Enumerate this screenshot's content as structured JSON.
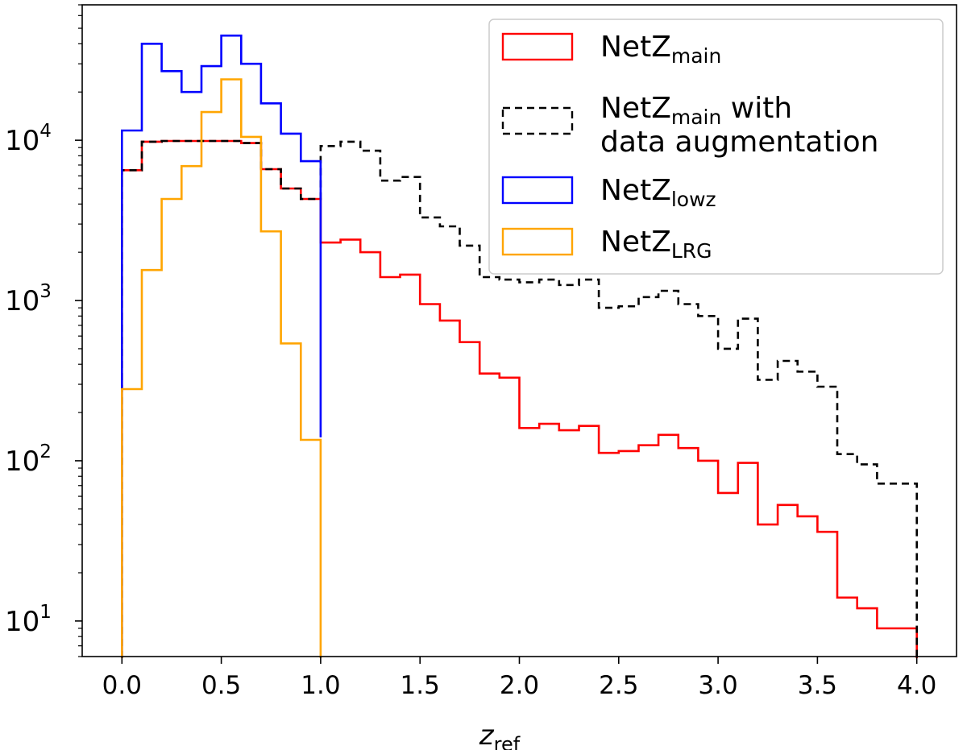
{
  "chart_data": {
    "type": "histogram-step",
    "title": "",
    "xlabel": {
      "main": "z",
      "sub": "ref"
    },
    "ylabel": "",
    "xlim": [
      -0.2,
      4.2
    ],
    "ylim": [
      6,
      70000
    ],
    "yscale": "log",
    "xticks": [
      "0.0",
      "0.5",
      "1.0",
      "1.5",
      "2.0",
      "2.5",
      "3.0",
      "3.5",
      "4.0"
    ],
    "xtick_values": [
      0,
      0.5,
      1.0,
      1.5,
      2.0,
      2.5,
      3.0,
      3.5,
      4.0
    ],
    "yticks": [
      {
        "value": 10,
        "base": "10",
        "exp": "1"
      },
      {
        "value": 100,
        "base": "10",
        "exp": "2"
      },
      {
        "value": 1000,
        "base": "10",
        "exp": "3"
      },
      {
        "value": 10000,
        "base": "10",
        "exp": "4"
      }
    ],
    "legend_position": "top-right",
    "series": [
      {
        "id": "main",
        "name": "NetZ",
        "sub": "main",
        "color": "#ff0000",
        "dash": "",
        "bins": [
          0,
          0.1,
          0.2,
          0.3,
          0.4,
          0.5,
          0.6,
          0.7,
          0.8,
          0.9,
          1.0,
          1.1,
          1.2,
          1.3,
          1.4,
          1.5,
          1.6,
          1.7,
          1.8,
          1.9,
          2.0,
          2.1,
          2.2,
          2.3,
          2.4,
          2.5,
          2.6,
          2.7,
          2.8,
          2.9,
          3.0,
          3.1,
          3.2,
          3.3,
          3.4,
          3.5,
          3.6,
          3.7,
          3.8,
          3.9,
          4.0
        ],
        "values": [
          6500,
          9800,
          9900,
          9900,
          9900,
          9900,
          9600,
          6600,
          5000,
          4300,
          2300,
          2400,
          2000,
          1400,
          1450,
          950,
          750,
          550,
          350,
          330,
          160,
          170,
          155,
          165,
          112,
          115,
          125,
          145,
          120,
          100,
          63,
          97,
          40,
          53,
          45,
          36,
          14,
          12,
          9,
          9
        ]
      },
      {
        "id": "augmented",
        "name": "NetZ",
        "sub": "main",
        "suffix_line1": " with",
        "line2": "data augmentation",
        "color": "#000000",
        "dash": "9,6",
        "bins": [
          0,
          0.1,
          0.2,
          0.3,
          0.4,
          0.5,
          0.6,
          0.7,
          0.8,
          0.9,
          1.0,
          1.1,
          1.2,
          1.3,
          1.4,
          1.5,
          1.6,
          1.7,
          1.8,
          1.9,
          2.0,
          2.1,
          2.2,
          2.3,
          2.4,
          2.5,
          2.6,
          2.7,
          2.8,
          2.9,
          3.0,
          3.1,
          3.2,
          3.3,
          3.4,
          3.5,
          3.6,
          3.7,
          3.8,
          3.9,
          4.0
        ],
        "values": [
          6500,
          9800,
          9900,
          9900,
          9900,
          9900,
          9600,
          6600,
          5000,
          4300,
          9200,
          9800,
          8600,
          5600,
          5900,
          3300,
          2900,
          2200,
          1400,
          1350,
          1300,
          1350,
          1250,
          1350,
          900,
          920,
          1050,
          1150,
          950,
          800,
          500,
          770,
          320,
          420,
          360,
          290,
          110,
          95,
          72,
          72
        ]
      },
      {
        "id": "lowz",
        "name": "NetZ",
        "sub": "lowz",
        "color": "#0000ff",
        "dash": "",
        "bins": [
          0,
          0.1,
          0.2,
          0.3,
          0.4,
          0.5,
          0.6,
          0.7,
          0.8,
          0.9,
          1.0
        ],
        "values": [
          11500,
          40000,
          27000,
          20000,
          29000,
          45000,
          30000,
          17000,
          11000,
          7400
        ],
        "edge_bottom": 140
      },
      {
        "id": "lrg",
        "name": "NetZ",
        "sub": "LRG",
        "color": "#ffa500",
        "dash": "",
        "bins": [
          0,
          0.1,
          0.2,
          0.3,
          0.4,
          0.5,
          0.6,
          0.7,
          0.8,
          0.9,
          1.0
        ],
        "values": [
          280,
          1550,
          4300,
          6900,
          15000,
          24000,
          10500,
          2700,
          540,
          135
        ]
      }
    ],
    "legend_order": [
      "main",
      "augmented",
      "lowz",
      "lrg"
    ]
  }
}
